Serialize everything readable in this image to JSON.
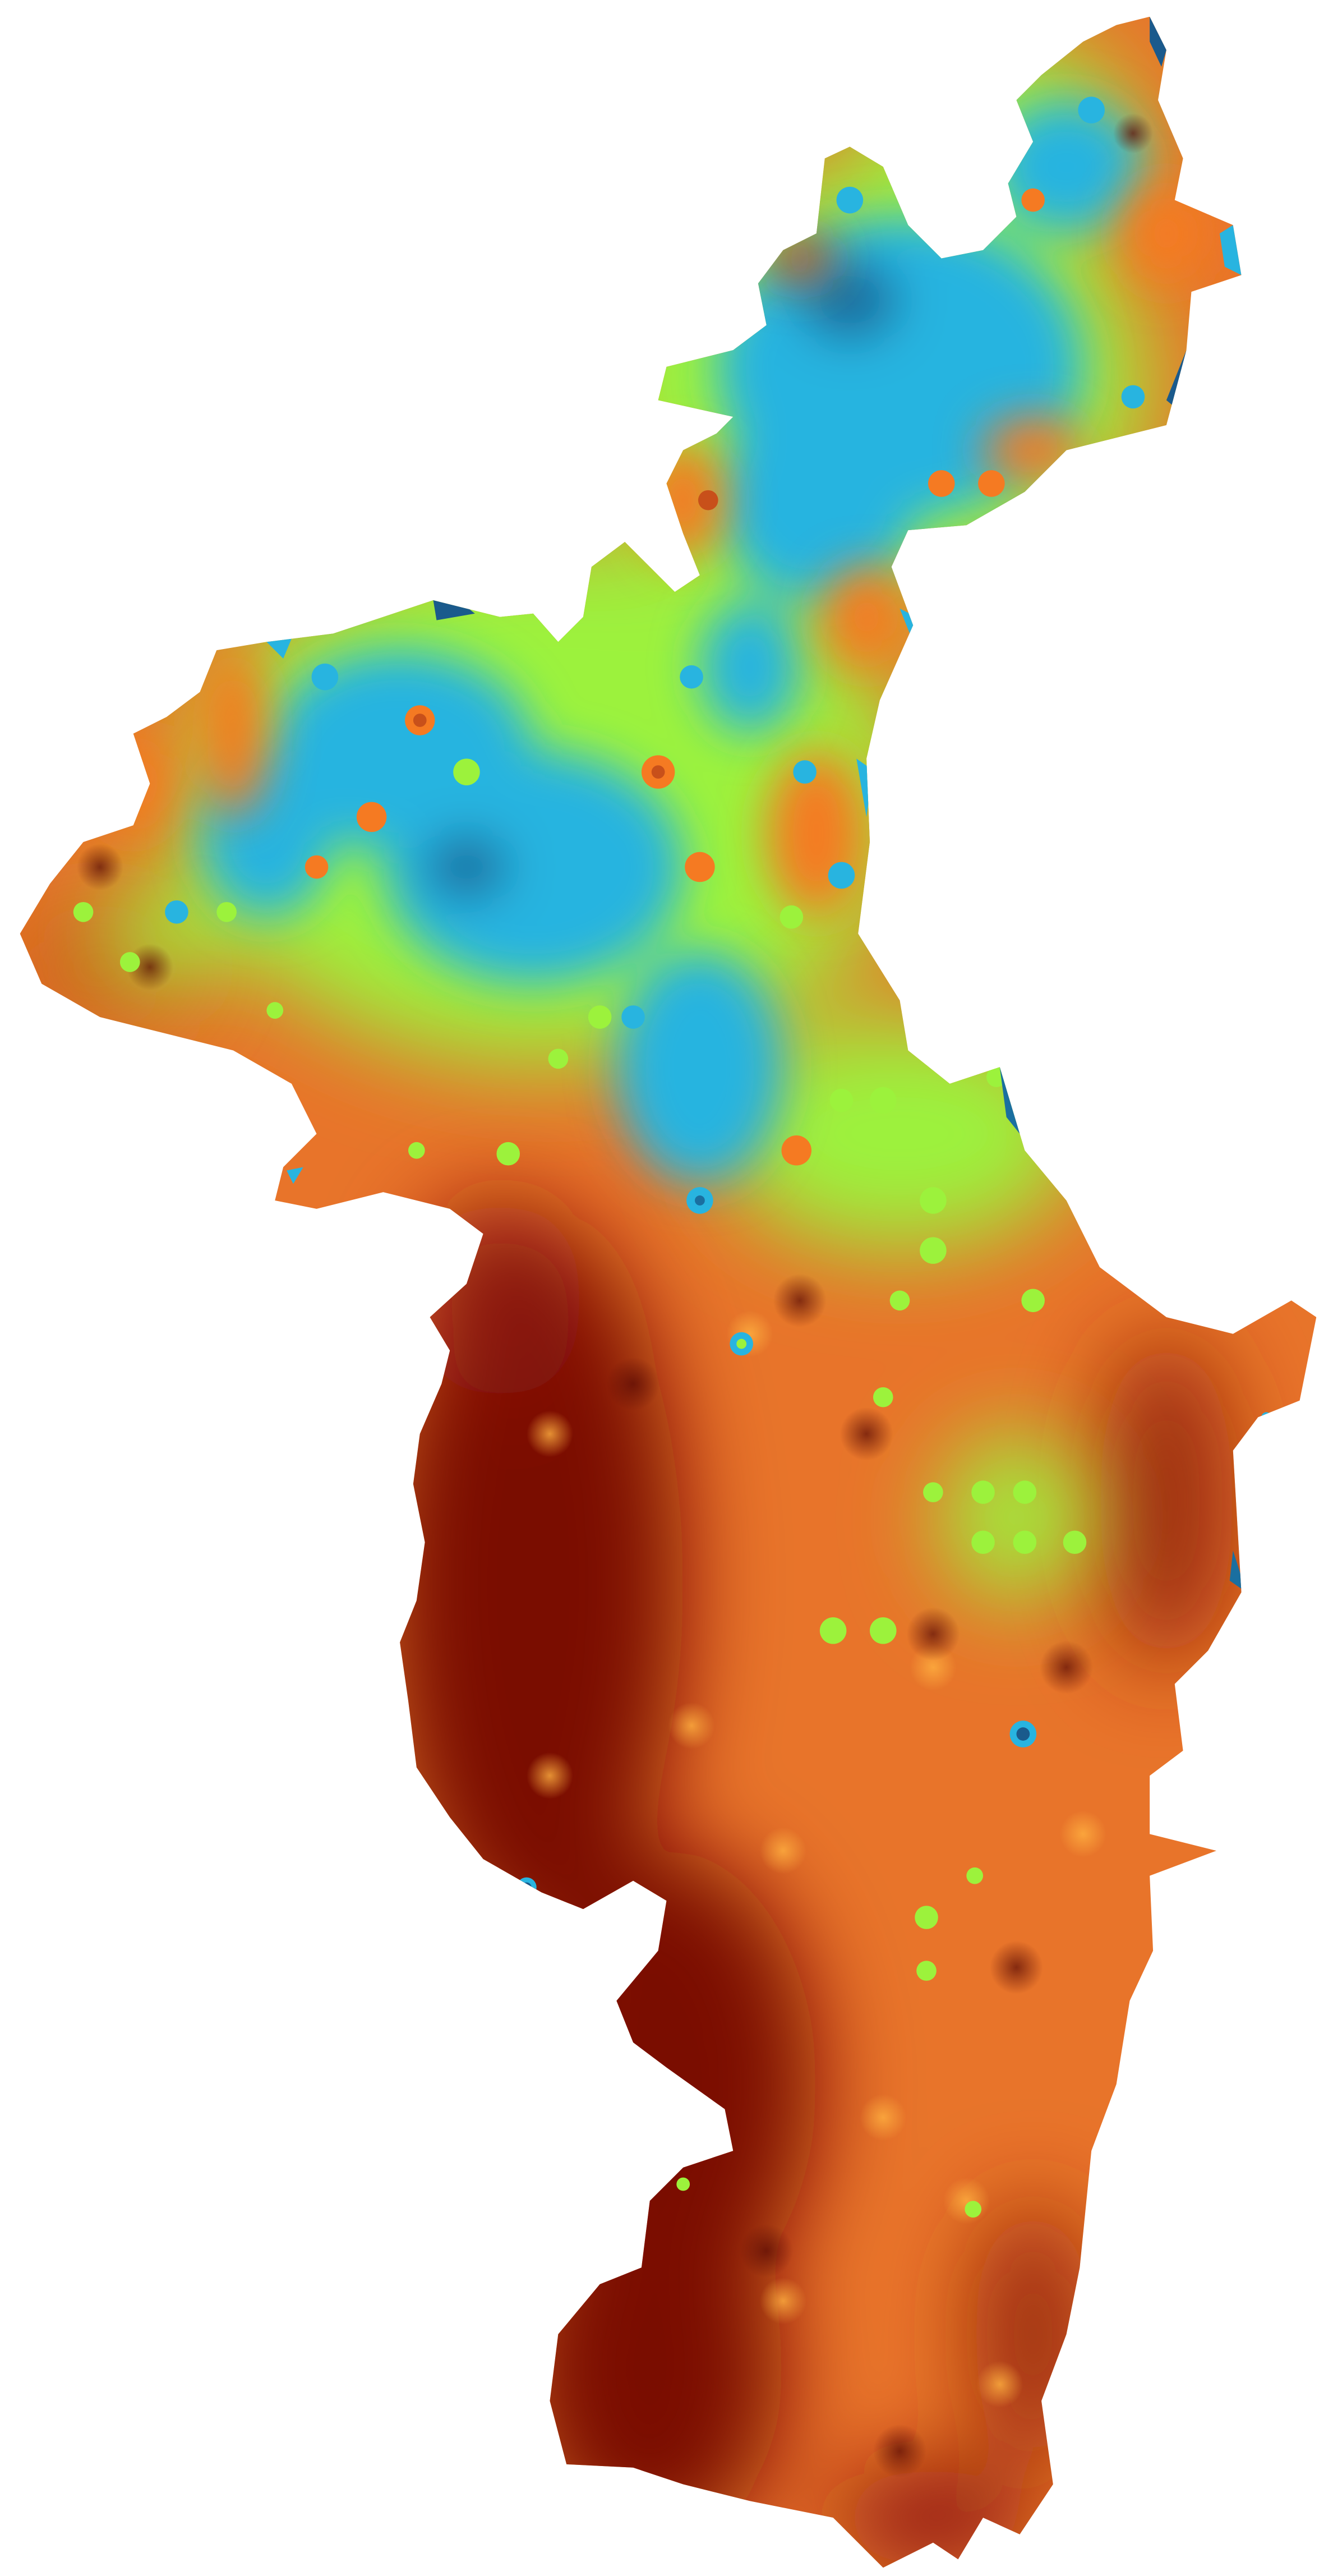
{
  "map": {
    "kind": "interpolated raster surface over a single region outline",
    "labels": [],
    "legend": null,
    "colors": {
      "background": "#ffffff",
      "deep_blue": "#1a5a8c",
      "cyan": "#28b4e0",
      "light_green": "#9cf23c",
      "orange": "#f57a22",
      "dark_orange": "#c8501a",
      "maroon": "#7a0a04"
    },
    "color_scale": [
      "#1a5a8c",
      "#28b4e0",
      "#9cf23c",
      "#f57a22",
      "#c8501a",
      "#7a0a04"
    ]
  }
}
